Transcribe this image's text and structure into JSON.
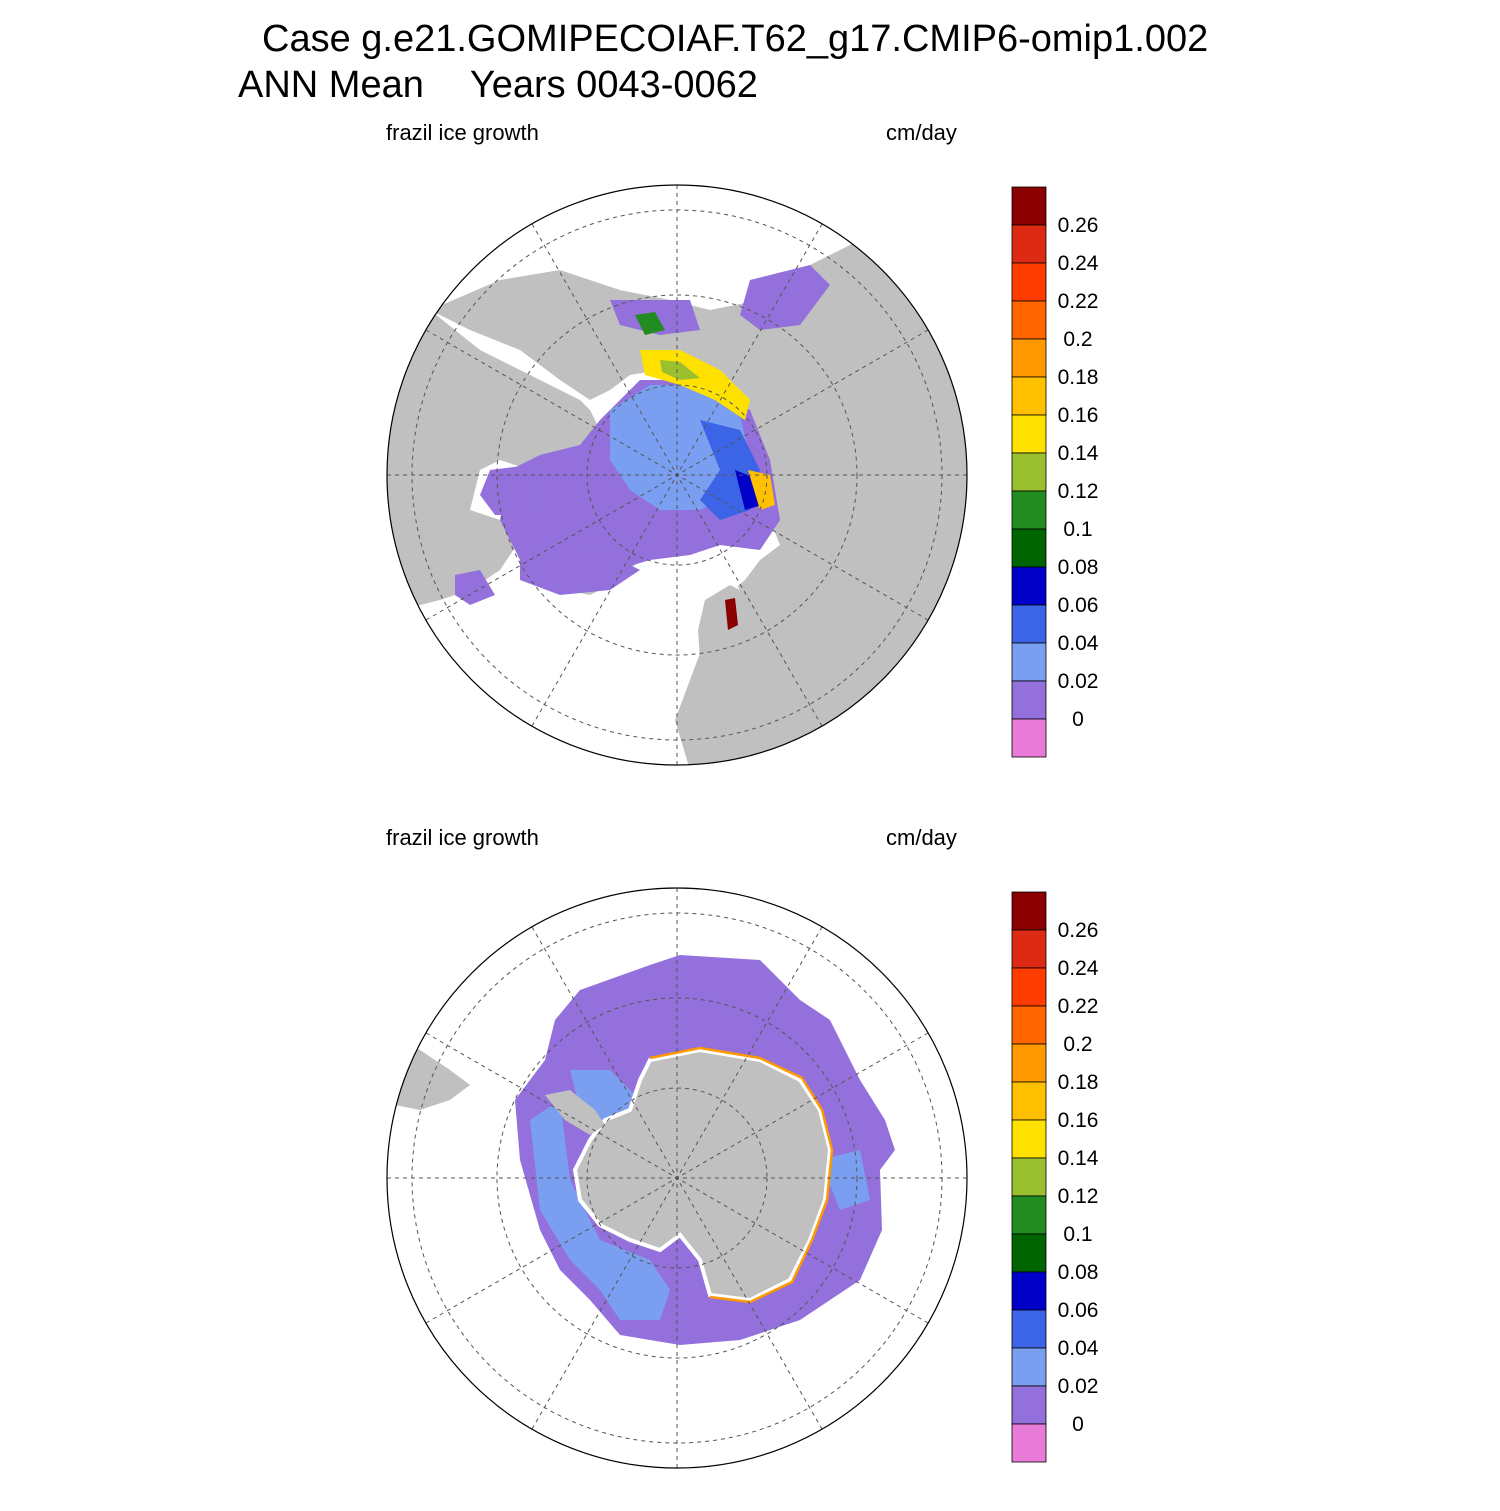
{
  "title": {
    "line1": "Case g.e21.GOMIPECOIAF.T62_g17.CMIP6-omip1.002",
    "mean": "ANN Mean",
    "years": "Years 0043-0062"
  },
  "panels": [
    {
      "id": "north",
      "hemisphere": "north",
      "left_label": "frazil ice growth",
      "right_label": "cm/day"
    },
    {
      "id": "south",
      "hemisphere": "south",
      "left_label": "frazil ice growth",
      "right_label": "cm/day"
    }
  ],
  "colorbar": {
    "labels": [
      "0.26",
      "0.24",
      "0.22",
      "0.2",
      "0.18",
      "0.16",
      "0.14",
      "0.12",
      "0.1",
      "0.08",
      "0.06",
      "0.04",
      "0.02",
      "0"
    ],
    "colors_top_to_bottom": [
      "#8b0000",
      "#dc2a14",
      "#ff3c00",
      "#ff6600",
      "#ff9900",
      "#ffc000",
      "#ffe100",
      "#9ac030",
      "#228b22",
      "#006400",
      "#0000c8",
      "#3c64e6",
      "#7b9ff0",
      "#9370db",
      "#e87ad8"
    ]
  },
  "colors": {
    "land": "#c0c0c0",
    "ocean": "#ffffff",
    "grid": "#555555"
  }
}
